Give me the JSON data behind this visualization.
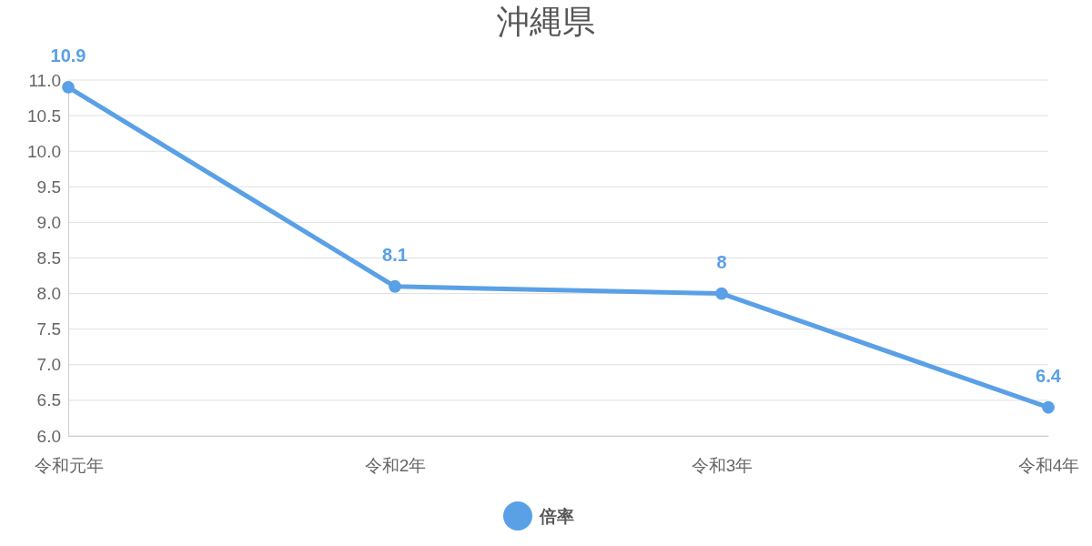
{
  "chart_data": {
    "type": "line",
    "title": "沖縄県",
    "categories": [
      "令和元年",
      "令和2年",
      "令和3年",
      "令和4年"
    ],
    "series": [
      {
        "name": "倍率",
        "color": "#5aa0e6",
        "values": [
          10.9,
          8.1,
          8,
          6.4
        ]
      }
    ],
    "ylim": [
      6,
      11
    ],
    "yticks": [
      {
        "value": 6,
        "label": "6.0"
      },
      {
        "value": 6.5,
        "label": "6.5"
      },
      {
        "value": 7,
        "label": "7.0"
      },
      {
        "value": 7.5,
        "label": "7.5"
      },
      {
        "value": 8,
        "label": "8.0"
      },
      {
        "value": 8.5,
        "label": "8.5"
      },
      {
        "value": 9,
        "label": "9.0"
      },
      {
        "value": 9.5,
        "label": "9.5"
      },
      {
        "value": 10,
        "label": "10.0"
      },
      {
        "value": 10.5,
        "label": "10.5"
      },
      {
        "value": 11,
        "label": "11.0"
      }
    ],
    "grid": "y",
    "legend": "bottom",
    "marker": "circle",
    "line_style": "solid",
    "data_labels": true
  }
}
